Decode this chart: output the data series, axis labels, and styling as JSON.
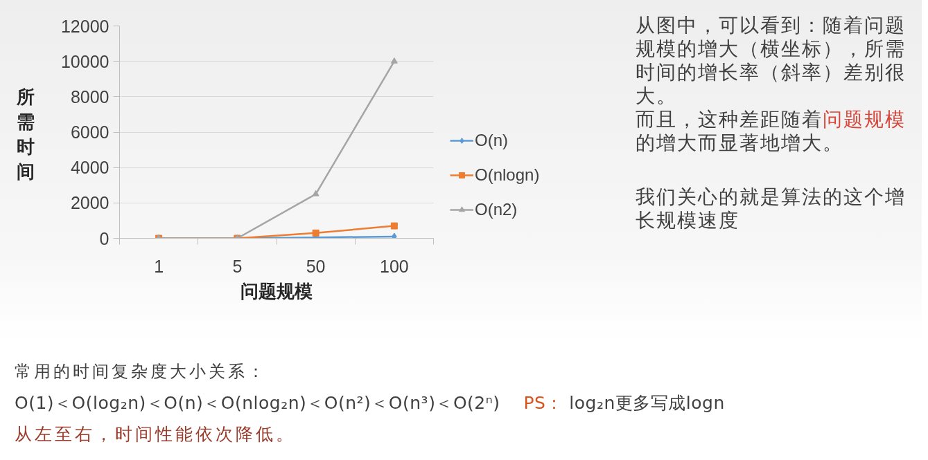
{
  "chart_data": {
    "type": "line",
    "categories": [
      "1",
      "5",
      "50",
      "100"
    ],
    "xlabel": "问题规模",
    "ylabel": "所需时间",
    "ylim": [
      0,
      12000
    ],
    "yticks": [
      0,
      2000,
      4000,
      6000,
      8000,
      10000,
      12000
    ],
    "grid": "y",
    "legend": "right",
    "line_style": "solid",
    "series": [
      {
        "name": "O(n)",
        "color": "#5b9bd5",
        "marker": "diamond",
        "values": [
          0,
          0,
          50,
          100
        ]
      },
      {
        "name": "O(nlogn)",
        "color": "#ed7d31",
        "marker": "square",
        "values": [
          0,
          0,
          300,
          700
        ]
      },
      {
        "name": "O(n2)",
        "color": "#a5a5a5",
        "marker": "triangle",
        "values": [
          0,
          0,
          2500,
          10000
        ]
      }
    ],
    "annotations": [
      "从图中，可以看到：随着问题规模的增大（横坐标），所需时间的增长率（斜率）差别很大。",
      "而且，这种差距随着",
      "问题规模",
      "的增大而显著地增大。",
      "我们关心的就是算法的这个增长规模速度",
      "常用的时间复杂度大小关系：",
      "O(1)＜O(log₂n)＜O(n)＜O(nlog₂n)＜O(n²)＜O(n³)＜O(2ⁿ)",
      "PS：",
      "log₂n更多写成logn",
      "从左至右，时间性能依次降低。"
    ]
  }
}
